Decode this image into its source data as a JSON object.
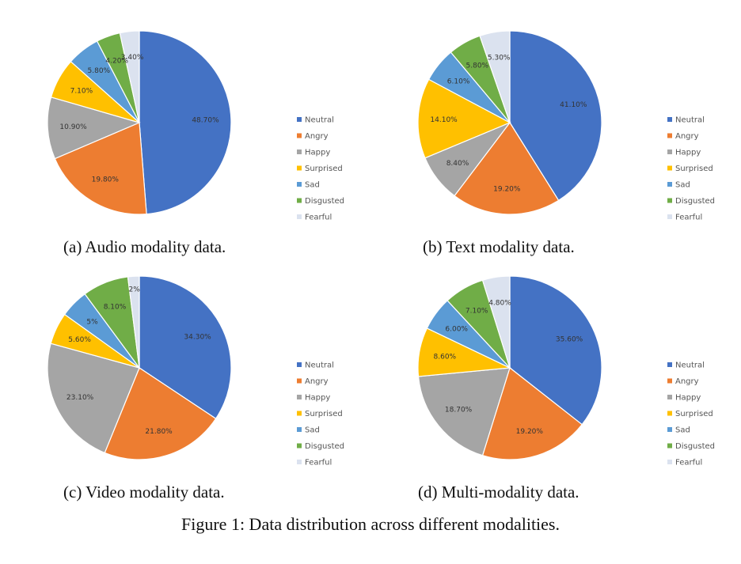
{
  "chart_data": [
    {
      "type": "pie",
      "caption": "(a) Audio modality data.",
      "categories": [
        "Neutral",
        "Angry",
        "Happy",
        "Surprised",
        "Sad",
        "Disgusted",
        "Fearful"
      ],
      "values": [
        48.7,
        19.8,
        10.9,
        7.1,
        5.8,
        4.2,
        3.4
      ],
      "labels": [
        "48.70%",
        "19.80%",
        "10.90%",
        "7.10%",
        "5.80%",
        "4.20%",
        "3.40%"
      ],
      "legend_position": "right"
    },
    {
      "type": "pie",
      "caption": "(b) Text modality data.",
      "categories": [
        "Neutral",
        "Angry",
        "Happy",
        "Surprised",
        "Sad",
        "Disgusted",
        "Fearful"
      ],
      "values": [
        41.1,
        19.2,
        8.4,
        14.1,
        6.1,
        5.8,
        5.3
      ],
      "labels": [
        "41.10%",
        "19.20%",
        "8.40%",
        "14.10%",
        "6.10%",
        "5.80%",
        "5.30%"
      ],
      "legend_position": "right"
    },
    {
      "type": "pie",
      "caption": "(c) Video modality data.",
      "categories": [
        "Neutral",
        "Angry",
        "Happy",
        "Surprised",
        "Sad",
        "Disgusted",
        "Fearful"
      ],
      "values": [
        34.3,
        21.8,
        23.1,
        5.6,
        5,
        8.1,
        2
      ],
      "labels": [
        "34.30%",
        "21.80%",
        "23.10%",
        "5.60%",
        "5%",
        "8.10%",
        "2%"
      ],
      "legend_position": "right"
    },
    {
      "type": "pie",
      "caption": "(d) Multi-modality data.",
      "categories": [
        "Neutral",
        "Angry",
        "Happy",
        "Surprised",
        "Sad",
        "Disgusted",
        "Fearful"
      ],
      "values": [
        35.6,
        19.2,
        18.7,
        8.6,
        6,
        7.1,
        4.8
      ],
      "labels": [
        "35.60%",
        "19.20%",
        "18.70%",
        "8.60%",
        "6.00%",
        "7.10%",
        "4.80%"
      ],
      "legend_position": "right"
    }
  ],
  "colors": [
    "#4472c4",
    "#ed7d31",
    "#a5a5a5",
    "#ffc000",
    "#5b9bd5",
    "#70ad47",
    "#dbe2ef"
  ],
  "figure_caption": "Figure 1: Data distribution across different modalities."
}
